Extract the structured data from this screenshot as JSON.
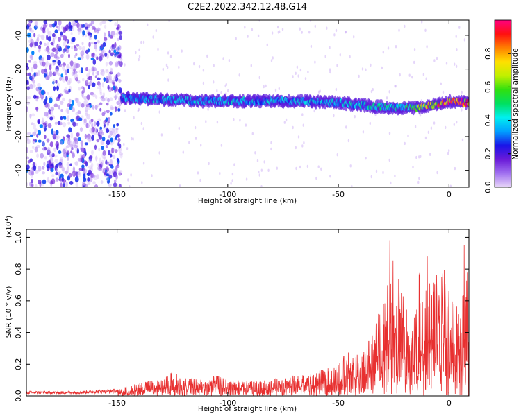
{
  "figure": {
    "title": "C2E2.2022.342.12.48.G14"
  },
  "chart_data": [
    {
      "type": "heatmap",
      "xlabel": "Height of straight line (km)",
      "ylabel": "Frequency (Hz)",
      "xlim": [
        -191,
        9
      ],
      "ylim": [
        -50,
        49
      ],
      "xticks": [
        -150,
        -100,
        -50,
        0
      ],
      "yticks": [
        -40,
        -20,
        0,
        20,
        40
      ],
      "colorbar": {
        "label": "Normalized spectral amplitude",
        "range": [
          0.0,
          1.0
        ],
        "ticks": [
          0.0,
          0.2,
          0.4,
          0.6,
          0.8
        ],
        "colormap": [
          "#e8d6f8",
          "#a070f0",
          "#6a1ad8",
          "#1a14e8",
          "#00a0ff",
          "#00f0f0",
          "#00e060",
          "#30e010",
          "#c0f000",
          "#ffe000",
          "#ff8000",
          "#ff1010",
          "#ff0080"
        ]
      },
      "ridge": {
        "description_points_x": [
          -148,
          -130,
          -110,
          -90,
          -70,
          -50,
          -35,
          -25,
          -15,
          -5,
          0,
          9
        ],
        "frequency_y": [
          3,
          2,
          1,
          1,
          1,
          0,
          -2,
          -3,
          -3,
          -1,
          1,
          0
        ],
        "amplitude": [
          0.3,
          0.35,
          0.35,
          0.35,
          0.35,
          0.35,
          0.4,
          0.4,
          0.5,
          0.8,
          0.9,
          0.85
        ]
      },
      "noise_region_x": [
        -191,
        -148
      ]
    },
    {
      "type": "line",
      "xlabel": "Height of straight line (km)",
      "ylabel": "SNR (10 * v/v)",
      "yscale_label": "(x10",
      "yscale_exponent": "4",
      "yscale_suffix": ")",
      "xlim": [
        -191,
        9
      ],
      "ylim": [
        0.0,
        1.05
      ],
      "xticks": [
        -150,
        -100,
        -50,
        0
      ],
      "yticks": [
        0.0,
        0.2,
        0.4,
        0.6,
        0.8,
        1.0
      ],
      "series": [
        {
          "color": "#e83030",
          "x": [
            -191,
            -170,
            -150,
            -145,
            -140,
            -130,
            -125,
            -120,
            -110,
            -105,
            -100,
            -90,
            -80,
            -70,
            -60,
            -50,
            -45,
            -40,
            -35,
            -30,
            -27,
            -25,
            -22,
            -20,
            -17,
            -15,
            -10,
            -5,
            -3,
            0,
            2,
            5,
            9
          ],
          "y": [
            0.02,
            0.02,
            0.03,
            0.05,
            0.07,
            0.08,
            0.12,
            0.09,
            0.08,
            0.1,
            0.08,
            0.07,
            0.08,
            0.1,
            0.12,
            0.15,
            0.25,
            0.18,
            0.3,
            0.5,
            0.6,
            0.7,
            0.55,
            0.45,
            0.35,
            0.45,
            0.55,
            0.6,
            0.65,
            0.55,
            0.45,
            0.5,
            0.7
          ]
        }
      ]
    }
  ]
}
